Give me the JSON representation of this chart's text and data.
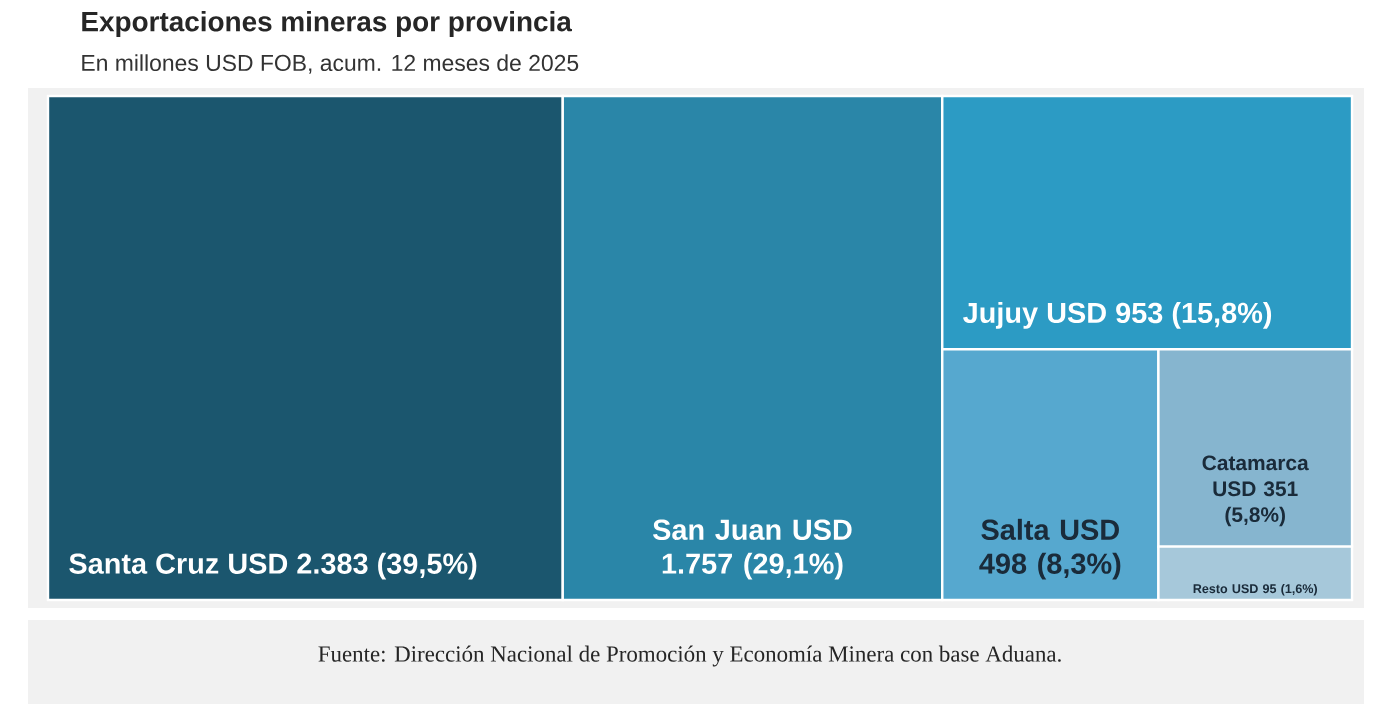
{
  "chart_data": {
    "type": "other",
    "title": "Exportaciones mineras por provincia",
    "subtitle": "En millones USD FOB, acum. 12 meses de 2025",
    "categories": [
      "Santa Cruz",
      "San Juan",
      "Jujuy",
      "Salta",
      "Catamarca",
      "Resto"
    ],
    "values": [
      2383,
      1757,
      953,
      498,
      351,
      95
    ],
    "value_labels": [
      "USD 2.383 (39,5%)",
      "USD 1.757 (29,1%)",
      "USD 953 (15,8%)",
      "USD 498 (8,3%)",
      "USD 351 (5,8%)",
      "USD 95 (1,6%)"
    ],
    "colors": [
      "#1b566e",
      "#2a86a8",
      "#2c9bc4",
      "#56a8cf",
      "#86b5cf",
      "#a6c8da"
    ],
    "annotations": [
      "Fuente: Dirección Nacional de Promoción y Economía Minera con base Aduana."
    ]
  }
}
